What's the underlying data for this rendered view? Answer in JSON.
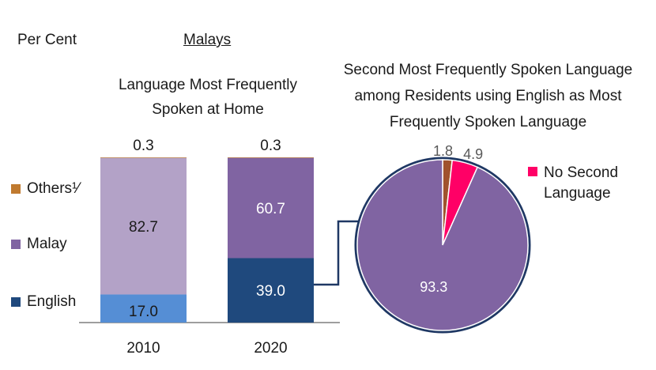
{
  "header": {
    "unit_label": "Per Cent",
    "group_title": "Malays"
  },
  "chart_data": [
    {
      "type": "bar",
      "stacked": true,
      "title": "Language Most Frequently Spoken at Home",
      "categories": [
        "2010",
        "2020"
      ],
      "series": [
        {
          "name": "English",
          "values": [
            17.0,
            39.0
          ]
        },
        {
          "name": "Malay",
          "values": [
            82.7,
            60.7
          ]
        },
        {
          "name": "Others¹⁄",
          "values": [
            0.3,
            0.3
          ]
        }
      ],
      "ylim": [
        0,
        100
      ],
      "grid": false,
      "legend_position": "left",
      "colors": {
        "2010": {
          "English": "#558ed5",
          "Malay": "#b3a2c7",
          "Others¹⁄": "#c07a2f"
        },
        "2020": {
          "English": "#1f497d",
          "Malay": "#8064a2",
          "Others¹⁄": "#c07a2f"
        }
      }
    },
    {
      "type": "pie",
      "title": "Second Most Frequently Spoken Language among Residents using English as Most Frequently Spoken Language",
      "slices": [
        {
          "name": "Others",
          "value": 1.8,
          "color": "#a0522d"
        },
        {
          "name": "No Second Language",
          "value": 4.9,
          "color": "#ff0066"
        },
        {
          "name": "Malay",
          "value": 93.3,
          "color": "#8064a2"
        }
      ],
      "legend": [
        {
          "name": "No Second Language",
          "color": "#ff0066"
        }
      ],
      "border_color": "#1f3864"
    }
  ]
}
